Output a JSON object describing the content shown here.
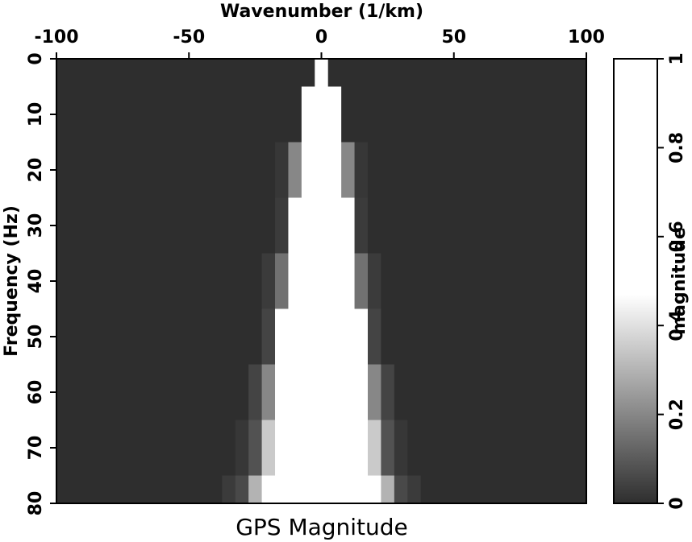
{
  "chart_data": {
    "type": "heatmap",
    "title": "GPS Magnitude",
    "xlabel": "Wavenumber (1/km)",
    "ylabel": "Frequency (Hz)",
    "x": [
      -100,
      -95,
      -90,
      -85,
      -80,
      -75,
      -70,
      -65,
      -60,
      -55,
      -50,
      -45,
      -40,
      -35,
      -30,
      -25,
      -20,
      -15,
      -10,
      -5,
      0,
      5,
      10,
      15,
      20,
      25,
      30,
      35,
      40,
      45,
      50,
      55,
      60,
      65,
      70,
      75,
      80,
      85,
      90,
      95,
      100
    ],
    "y": [
      0,
      10,
      20,
      30,
      40,
      50,
      60,
      70,
      80
    ],
    "z": [
      [
        0,
        0,
        0,
        0,
        0,
        0,
        0,
        0,
        0,
        0,
        0,
        0,
        0,
        0,
        0,
        0,
        0,
        0,
        0,
        0,
        1,
        0,
        0,
        0,
        0,
        0,
        0,
        0,
        0,
        0,
        0,
        0,
        0,
        0,
        0,
        0,
        0,
        0,
        0,
        0,
        0
      ],
      [
        0,
        0,
        0,
        0,
        0,
        0,
        0,
        0,
        0,
        0,
        0,
        0,
        0,
        0,
        0,
        0,
        0,
        0,
        0,
        0.5,
        1,
        0.5,
        0,
        0,
        0,
        0,
        0,
        0,
        0,
        0,
        0,
        0,
        0,
        0,
        0,
        0,
        0,
        0,
        0,
        0,
        0
      ],
      [
        0,
        0,
        0,
        0,
        0,
        0,
        0,
        0,
        0,
        0,
        0,
        0,
        0,
        0,
        0,
        0,
        0,
        0.02,
        0.2,
        1,
        1,
        1,
        0.2,
        0.02,
        0,
        0,
        0,
        0,
        0,
        0,
        0,
        0,
        0,
        0,
        0,
        0,
        0,
        0,
        0,
        0,
        0
      ],
      [
        0,
        0,
        0,
        0,
        0,
        0,
        0,
        0,
        0,
        0,
        0,
        0,
        0,
        0,
        0,
        0,
        0,
        0.03,
        0.5,
        1,
        1,
        1,
        0.5,
        0.03,
        0,
        0,
        0,
        0,
        0,
        0,
        0,
        0,
        0,
        0,
        0,
        0,
        0,
        0,
        0,
        0,
        0
      ],
      [
        0,
        0,
        0,
        0,
        0,
        0,
        0,
        0,
        0,
        0,
        0,
        0,
        0,
        0,
        0,
        0,
        0.03,
        0.15,
        1,
        1,
        1,
        1,
        1,
        0.15,
        0.03,
        0,
        0,
        0,
        0,
        0,
        0,
        0,
        0,
        0,
        0,
        0,
        0,
        0,
        0,
        0,
        0
      ],
      [
        0,
        0,
        0,
        0,
        0,
        0,
        0,
        0,
        0,
        0,
        0,
        0,
        0,
        0,
        0,
        0,
        0.05,
        0.5,
        1,
        1,
        1,
        1,
        1,
        0.5,
        0.05,
        0,
        0,
        0,
        0,
        0,
        0,
        0,
        0,
        0,
        0,
        0,
        0,
        0,
        0,
        0,
        0
      ],
      [
        0,
        0,
        0,
        0,
        0,
        0,
        0,
        0,
        0,
        0,
        0,
        0,
        0,
        0,
        0,
        0.05,
        0.2,
        0.9,
        1,
        1,
        1,
        1,
        1,
        0.9,
        0.2,
        0.05,
        0,
        0,
        0,
        0,
        0,
        0,
        0,
        0,
        0,
        0,
        0,
        0,
        0,
        0,
        0
      ],
      [
        0,
        0,
        0,
        0,
        0,
        0,
        0,
        0,
        0,
        0,
        0,
        0,
        0,
        0,
        0.02,
        0.08,
        0.35,
        1,
        1,
        1,
        1,
        1,
        1,
        1,
        0.35,
        0.08,
        0.02,
        0,
        0,
        0,
        0,
        0,
        0,
        0,
        0,
        0,
        0,
        0,
        0,
        0,
        0
      ],
      [
        0,
        0,
        0,
        0,
        0,
        0,
        0,
        0,
        0,
        0,
        0,
        0,
        0,
        0.03,
        0.06,
        0.3,
        0.9,
        1,
        1,
        1,
        1,
        1,
        1,
        1,
        0.9,
        0.3,
        0.06,
        0.03,
        0,
        0,
        0,
        0,
        0,
        0,
        0,
        0,
        0,
        0,
        0,
        0,
        0
      ]
    ],
    "xlim": [
      -100,
      100
    ],
    "xticks": [
      -100,
      -50,
      0,
      50,
      100
    ],
    "ylim": [
      0,
      80
    ],
    "yticks": [
      0,
      10,
      20,
      30,
      40,
      50,
      60,
      70,
      80
    ],
    "y_inverted": true,
    "colorscale": [
      [
        0,
        "#2e2e2e"
      ],
      [
        0.47,
        "#ffffff"
      ],
      [
        1,
        "#ffffff"
      ]
    ],
    "colorbar": {
      "label": "magnitude",
      "lim": [
        0,
        1
      ],
      "ticks": [
        0,
        0.2,
        0.4,
        0.6,
        0.8,
        1
      ]
    }
  }
}
